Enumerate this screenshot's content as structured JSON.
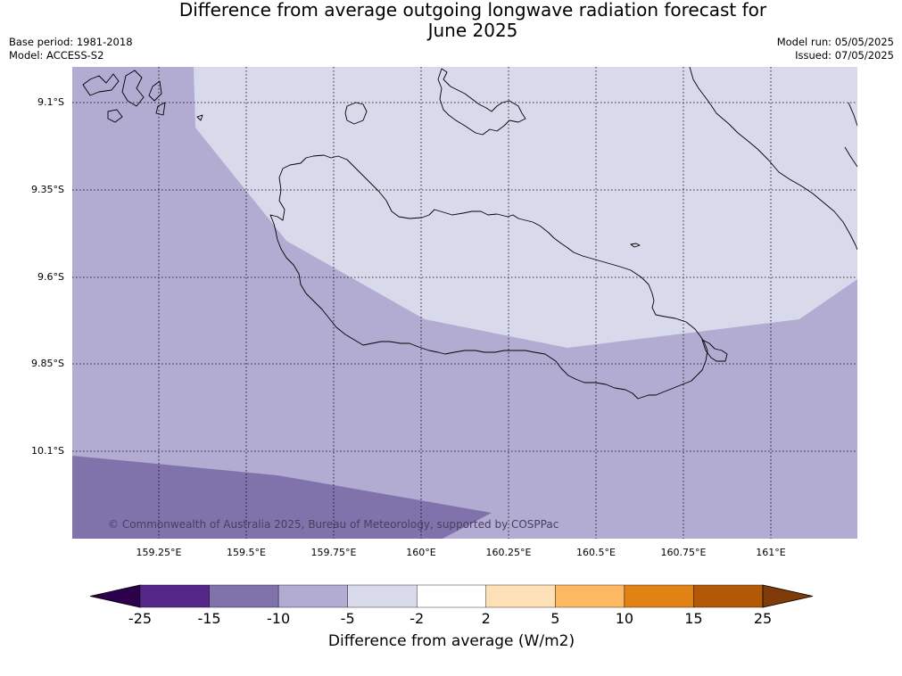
{
  "title_line1": "Difference from average outgoing longwave radiation forecast for",
  "title_line2": "June 2025",
  "meta_left": {
    "base_period": "Base period: 1981-2018",
    "model": "Model: ACCESS-S2"
  },
  "meta_right": {
    "model_run": "Model run: 05/05/2025",
    "issued": "Issued: 07/05/2025"
  },
  "latitude_labels": [
    "9.1°S",
    "9.35°S",
    "9.6°S",
    "9.85°S",
    "10.1°S"
  ],
  "longitude_labels": [
    "159.25°E",
    "159.5°E",
    "159.75°E",
    "160°E",
    "160.25°E",
    "160.5°E",
    "160.75°E",
    "161°E"
  ],
  "copyright": "© Commonwealth of Australia 2025, Bureau of Meteorology, supported by COSPPac",
  "colorbar": {
    "label": "Difference from average (W/m2)",
    "ticks": [
      "-25",
      "-15",
      "-10",
      "-5",
      "-2",
      "2",
      "5",
      "10",
      "15",
      "25"
    ],
    "colors": [
      "#2d004b",
      "#542788",
      "#8073ac",
      "#b2abd2",
      "#d8daeb",
      "#ffffff",
      "#fee0b6",
      "#fdb863",
      "#e08214",
      "#b35806",
      "#7f3b08"
    ]
  },
  "map_fill_colors": {
    "minus_15_to_10": "#8073ac",
    "minus_10_to_5": "#b2abd2",
    "minus_5_to_2": "#d8daeb"
  }
}
